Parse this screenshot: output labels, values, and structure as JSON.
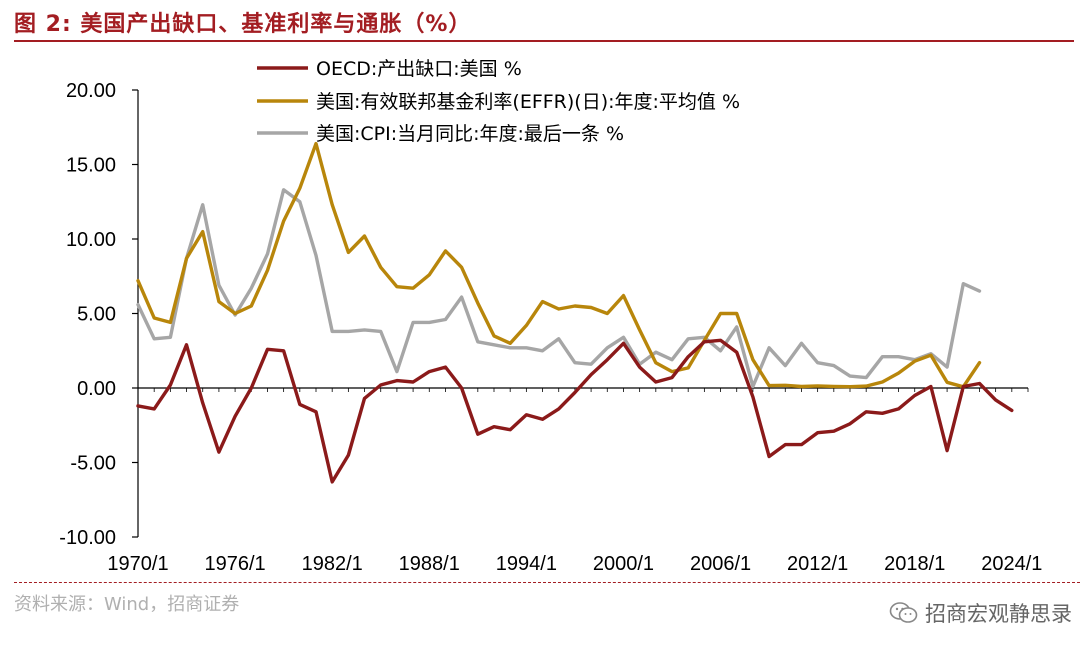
{
  "header": {
    "title": "图 2: 美国产出缺口、基准利率与通胀（%）"
  },
  "footer": {
    "source": "资料来源：Wind，招商证券",
    "watermark": "招商宏观静思录",
    "watermark_icon": "wechat-icon"
  },
  "colors": {
    "accent": "#a31d22",
    "oecd": "#8b1a1a",
    "effr": "#b8860b",
    "cpi": "#a6a6a6"
  },
  "chart_data": {
    "type": "line",
    "title": "",
    "xlabel": "",
    "ylabel": "",
    "ylim": [
      -10,
      20
    ],
    "yticks": [
      "20.00",
      "15.00",
      "10.00",
      "5.00",
      "0.00",
      "-5.00",
      "-10.00"
    ],
    "ytick_values": [
      20,
      15,
      10,
      5,
      0,
      -5,
      -10
    ],
    "xticks": [
      "1970/1",
      "1976/1",
      "1982/1",
      "1988/1",
      "1994/1",
      "2000/1",
      "2006/1",
      "2012/1",
      "2018/1",
      "2024/1"
    ],
    "xtick_years": [
      1970,
      1976,
      1982,
      1988,
      1994,
      2000,
      2006,
      2012,
      2018,
      2024
    ],
    "xlim": [
      1970,
      2025
    ],
    "legend_position": "top",
    "grid": false,
    "series": [
      {
        "name": "OECD:产出缺口:美国 %",
        "color": "#8b1a1a",
        "x": [
          1970,
          1971,
          1972,
          1973,
          1974,
          1975,
          1976,
          1977,
          1978,
          1979,
          1980,
          1981,
          1982,
          1983,
          1984,
          1985,
          1986,
          1987,
          1988,
          1989,
          1990,
          1991,
          1992,
          1993,
          1994,
          1995,
          1996,
          1997,
          1998,
          1999,
          2000,
          2001,
          2002,
          2003,
          2004,
          2005,
          2006,
          2007,
          2008,
          2009,
          2010,
          2011,
          2012,
          2013,
          2014,
          2015,
          2016,
          2017,
          2018,
          2019,
          2020,
          2021,
          2022,
          2023,
          2024
        ],
        "values": [
          -1.2,
          -1.4,
          0.2,
          2.9,
          -1.0,
          -4.3,
          -1.9,
          0.0,
          2.6,
          2.5,
          -1.1,
          -1.6,
          -6.3,
          -4.5,
          -0.7,
          0.2,
          0.5,
          0.4,
          1.1,
          1.4,
          0.0,
          -3.1,
          -2.6,
          -2.8,
          -1.8,
          -2.1,
          -1.4,
          -0.3,
          0.9,
          1.9,
          3.0,
          1.4,
          0.4,
          0.7,
          2.1,
          3.1,
          3.2,
          2.4,
          -0.6,
          -4.6,
          -3.8,
          -3.8,
          -3.0,
          -2.9,
          -2.4,
          -1.6,
          -1.7,
          -1.4,
          -0.5,
          0.1,
          -4.2,
          0.1,
          0.3,
          -0.8,
          -1.5
        ]
      },
      {
        "name": "美国:有效联邦基金利率(EFFR)(日):年度:平均值 %",
        "color": "#b8860b",
        "x": [
          1970,
          1971,
          1972,
          1973,
          1974,
          1975,
          1976,
          1977,
          1978,
          1979,
          1980,
          1981,
          1982,
          1983,
          1984,
          1985,
          1986,
          1987,
          1988,
          1989,
          1990,
          1991,
          1992,
          1993,
          1994,
          1995,
          1996,
          1997,
          1998,
          1999,
          2000,
          2001,
          2002,
          2003,
          2004,
          2005,
          2006,
          2007,
          2008,
          2009,
          2010,
          2011,
          2012,
          2013,
          2014,
          2015,
          2016,
          2017,
          2018,
          2019,
          2020,
          2021,
          2022
        ],
        "values": [
          7.2,
          4.7,
          4.4,
          8.7,
          10.5,
          5.8,
          5.0,
          5.5,
          7.9,
          11.2,
          13.4,
          16.4,
          12.3,
          9.1,
          10.2,
          8.1,
          6.8,
          6.7,
          7.6,
          9.2,
          8.1,
          5.7,
          3.5,
          3.0,
          4.2,
          5.8,
          5.3,
          5.5,
          5.4,
          5.0,
          6.2,
          3.9,
          1.7,
          1.1,
          1.35,
          3.2,
          5.0,
          5.0,
          1.9,
          0.16,
          0.18,
          0.1,
          0.14,
          0.11,
          0.09,
          0.13,
          0.4,
          1.0,
          1.8,
          2.2,
          0.38,
          0.08,
          1.7
        ]
      },
      {
        "name": "美国:CPI:当月同比:年度:最后一条 %",
        "color": "#a6a6a6",
        "x": [
          1970,
          1971,
          1972,
          1973,
          1974,
          1975,
          1976,
          1977,
          1978,
          1979,
          1980,
          1981,
          1982,
          1983,
          1984,
          1985,
          1986,
          1987,
          1988,
          1989,
          1990,
          1991,
          1992,
          1993,
          1994,
          1995,
          1996,
          1997,
          1998,
          1999,
          2000,
          2001,
          2002,
          2003,
          2004,
          2005,
          2006,
          2007,
          2008,
          2009,
          2010,
          2011,
          2012,
          2013,
          2014,
          2015,
          2016,
          2017,
          2018,
          2019,
          2020,
          2021,
          2022
        ],
        "values": [
          5.6,
          3.3,
          3.4,
          8.7,
          12.3,
          6.9,
          4.9,
          6.7,
          9.0,
          13.3,
          12.5,
          8.9,
          3.8,
          3.8,
          3.9,
          3.8,
          1.1,
          4.4,
          4.4,
          4.6,
          6.1,
          3.1,
          2.9,
          2.7,
          2.7,
          2.5,
          3.3,
          1.7,
          1.6,
          2.7,
          3.4,
          1.6,
          2.4,
          1.9,
          3.3,
          3.4,
          2.5,
          4.1,
          0.1,
          2.7,
          1.5,
          3.0,
          1.7,
          1.5,
          0.8,
          0.7,
          2.1,
          2.1,
          1.9,
          2.3,
          1.4,
          7.0,
          6.5
        ]
      }
    ]
  }
}
